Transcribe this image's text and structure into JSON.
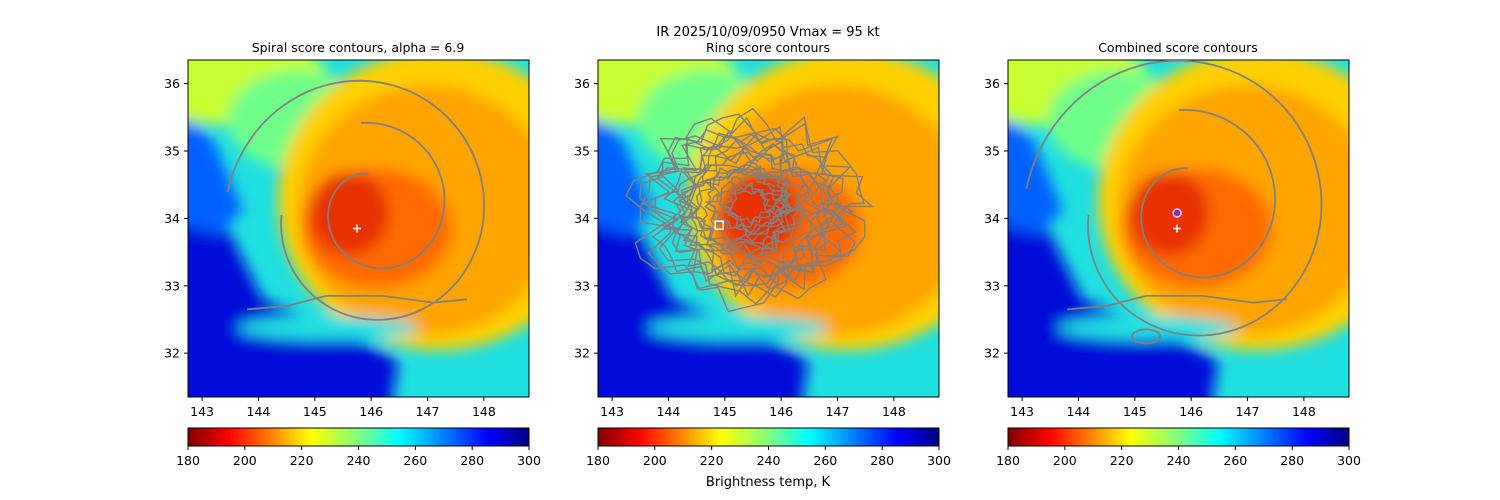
{
  "chart_data": {
    "type": "heatmap",
    "suptitle": "IR  2025/10/09/0950    Vmax = 95 kt",
    "colorbar": {
      "cmap": "jet_r",
      "range": [
        180,
        300
      ],
      "ticks": [
        "180",
        "200",
        "220",
        "240",
        "260",
        "280",
        "300"
      ],
      "label": "Brightness temp, K"
    },
    "xlim": [
      142.75,
      148.8
    ],
    "ylim": [
      31.35,
      36.35
    ],
    "xticks": [
      143,
      144,
      145,
      146,
      147,
      148
    ],
    "yticks": [
      32,
      33,
      34,
      35,
      36
    ],
    "storm_center": {
      "lon": 145.75,
      "lat": 33.85
    },
    "background_colors": {
      "eye_core": "#e83000",
      "inner_core": "#ff6a00",
      "outer_core": "#ffa400",
      "band": "#ffd000",
      "yellow_green": "#c8ff30",
      "green": "#70ff8a",
      "cyan": "#20e0e0",
      "blue": "#0060ff",
      "deep_blue": "#0010d8",
      "contour": "#808080"
    },
    "panels": [
      {
        "title": "Spiral score contours, alpha =  6.9",
        "contour_type": "spiral",
        "markers": [
          {
            "type": "plus",
            "lon": 145.75,
            "lat": 33.85,
            "color": "#ffffff"
          }
        ]
      },
      {
        "title": "Ring score contours",
        "contour_type": "ring",
        "markers": [
          {
            "type": "square",
            "lon": 144.9,
            "lat": 33.9,
            "color": "#ffffff"
          }
        ]
      },
      {
        "title": "Combined score contours",
        "contour_type": "combined",
        "markers": [
          {
            "type": "plus",
            "lon": 145.75,
            "lat": 33.85,
            "color": "#ffffff"
          },
          {
            "type": "circle",
            "lon": 145.75,
            "lat": 34.08,
            "color": "#a020c0"
          }
        ]
      }
    ]
  }
}
